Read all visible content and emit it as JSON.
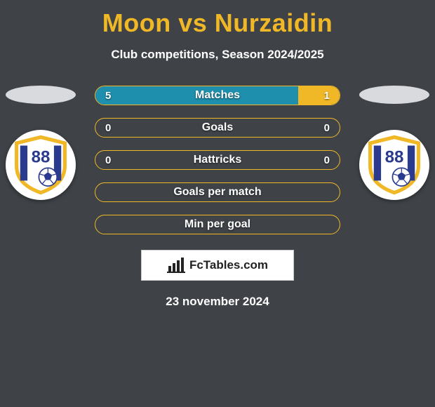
{
  "colors": {
    "background": "#3f4348",
    "title": "#f0b826",
    "text": "#ffffff",
    "bar_border": "#f0b826",
    "bar_fill_left": "#1f8fae",
    "bar_fill_right": "#f0b826",
    "bar_empty": "transparent",
    "shadow_left": "#d9dadd",
    "shadow_right": "#d9dadd",
    "badge_bg": "#ffffff"
  },
  "title": "Moon vs Nurzaidin",
  "subtitle": "Club competitions, Season 2024/2025",
  "date": "23 november 2024",
  "brand": "FcTables.com",
  "bars": [
    {
      "label": "Matches",
      "left": "5",
      "right": "1",
      "left_pct": 83,
      "right_pct": 17
    },
    {
      "label": "Goals",
      "left": "0",
      "right": "0",
      "left_pct": 0,
      "right_pct": 0
    },
    {
      "label": "Hattricks",
      "left": "0",
      "right": "0",
      "left_pct": 0,
      "right_pct": 0
    },
    {
      "label": "Goals per match",
      "left": "",
      "right": "",
      "left_pct": 0,
      "right_pct": 0
    },
    {
      "label": "Min per goal",
      "left": "",
      "right": "",
      "left_pct": 0,
      "right_pct": 0
    }
  ],
  "badge": {
    "number": "88",
    "shield_fill": "#ffffff",
    "shield_border": "#f0b826",
    "stripe": "#2a3b8f",
    "number_color": "#2a3b8f",
    "ball_bg": "#ffffff",
    "ball_panel": "#2a3b8f"
  }
}
